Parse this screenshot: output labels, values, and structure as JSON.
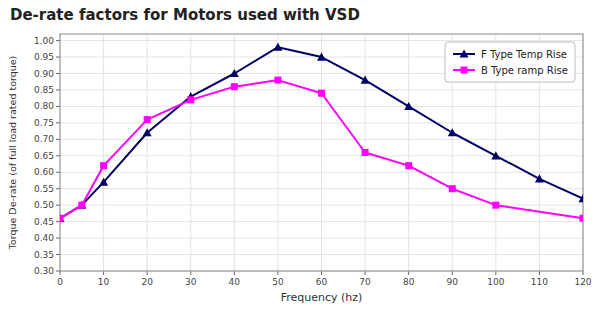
{
  "chart_data": {
    "type": "line",
    "title": "De-rate factors for Motors used with VSD",
    "x_label": "Frequency (hz)",
    "y_label": "Torque De-rate (of full load rated torque)",
    "series": [
      {
        "name": "F Type Temp Rise",
        "color": "#000066",
        "marker": "triangle",
        "x": [
          0,
          5,
          10,
          20,
          30,
          40,
          50,
          60,
          70,
          80,
          90,
          100,
          110,
          120
        ],
        "values": [
          0.46,
          0.5,
          0.57,
          0.72,
          0.83,
          0.9,
          0.98,
          0.95,
          0.88,
          0.8,
          0.72,
          0.65,
          0.58,
          0.52
        ]
      },
      {
        "name": "B Type ramp Rise",
        "color": "#FF00FF",
        "marker": "square",
        "x": [
          0,
          5,
          10,
          20,
          30,
          40,
          50,
          60,
          70,
          80,
          90,
          100,
          120
        ],
        "values": [
          0.46,
          0.5,
          0.62,
          0.76,
          0.82,
          0.86,
          0.88,
          0.84,
          0.66,
          0.62,
          0.55,
          0.5,
          0.46
        ]
      }
    ],
    "xlim": [
      0,
      120
    ],
    "ylim": [
      0.3,
      1.02
    ],
    "xticks": [
      0,
      10,
      20,
      30,
      40,
      50,
      60,
      70,
      80,
      90,
      100,
      110,
      120
    ],
    "yticks": [
      {
        "value": 0.3,
        "label": "0.30"
      },
      0.35,
      {
        "value": 0.4,
        "label": "0.40"
      },
      0.45,
      {
        "value": 0.5,
        "label": "0.50"
      },
      0.55,
      {
        "value": 0.6,
        "label": "0.60"
      },
      0.65,
      {
        "value": 0.7,
        "label": "0.70"
      },
      0.75,
      {
        "value": 0.8,
        "label": "0.80"
      },
      0.85,
      {
        "value": 0.9,
        "label": "0.90"
      },
      0.95,
      {
        "value": 1.0,
        "label": "1.00"
      }
    ],
    "grid": true,
    "legend": "upper right"
  }
}
